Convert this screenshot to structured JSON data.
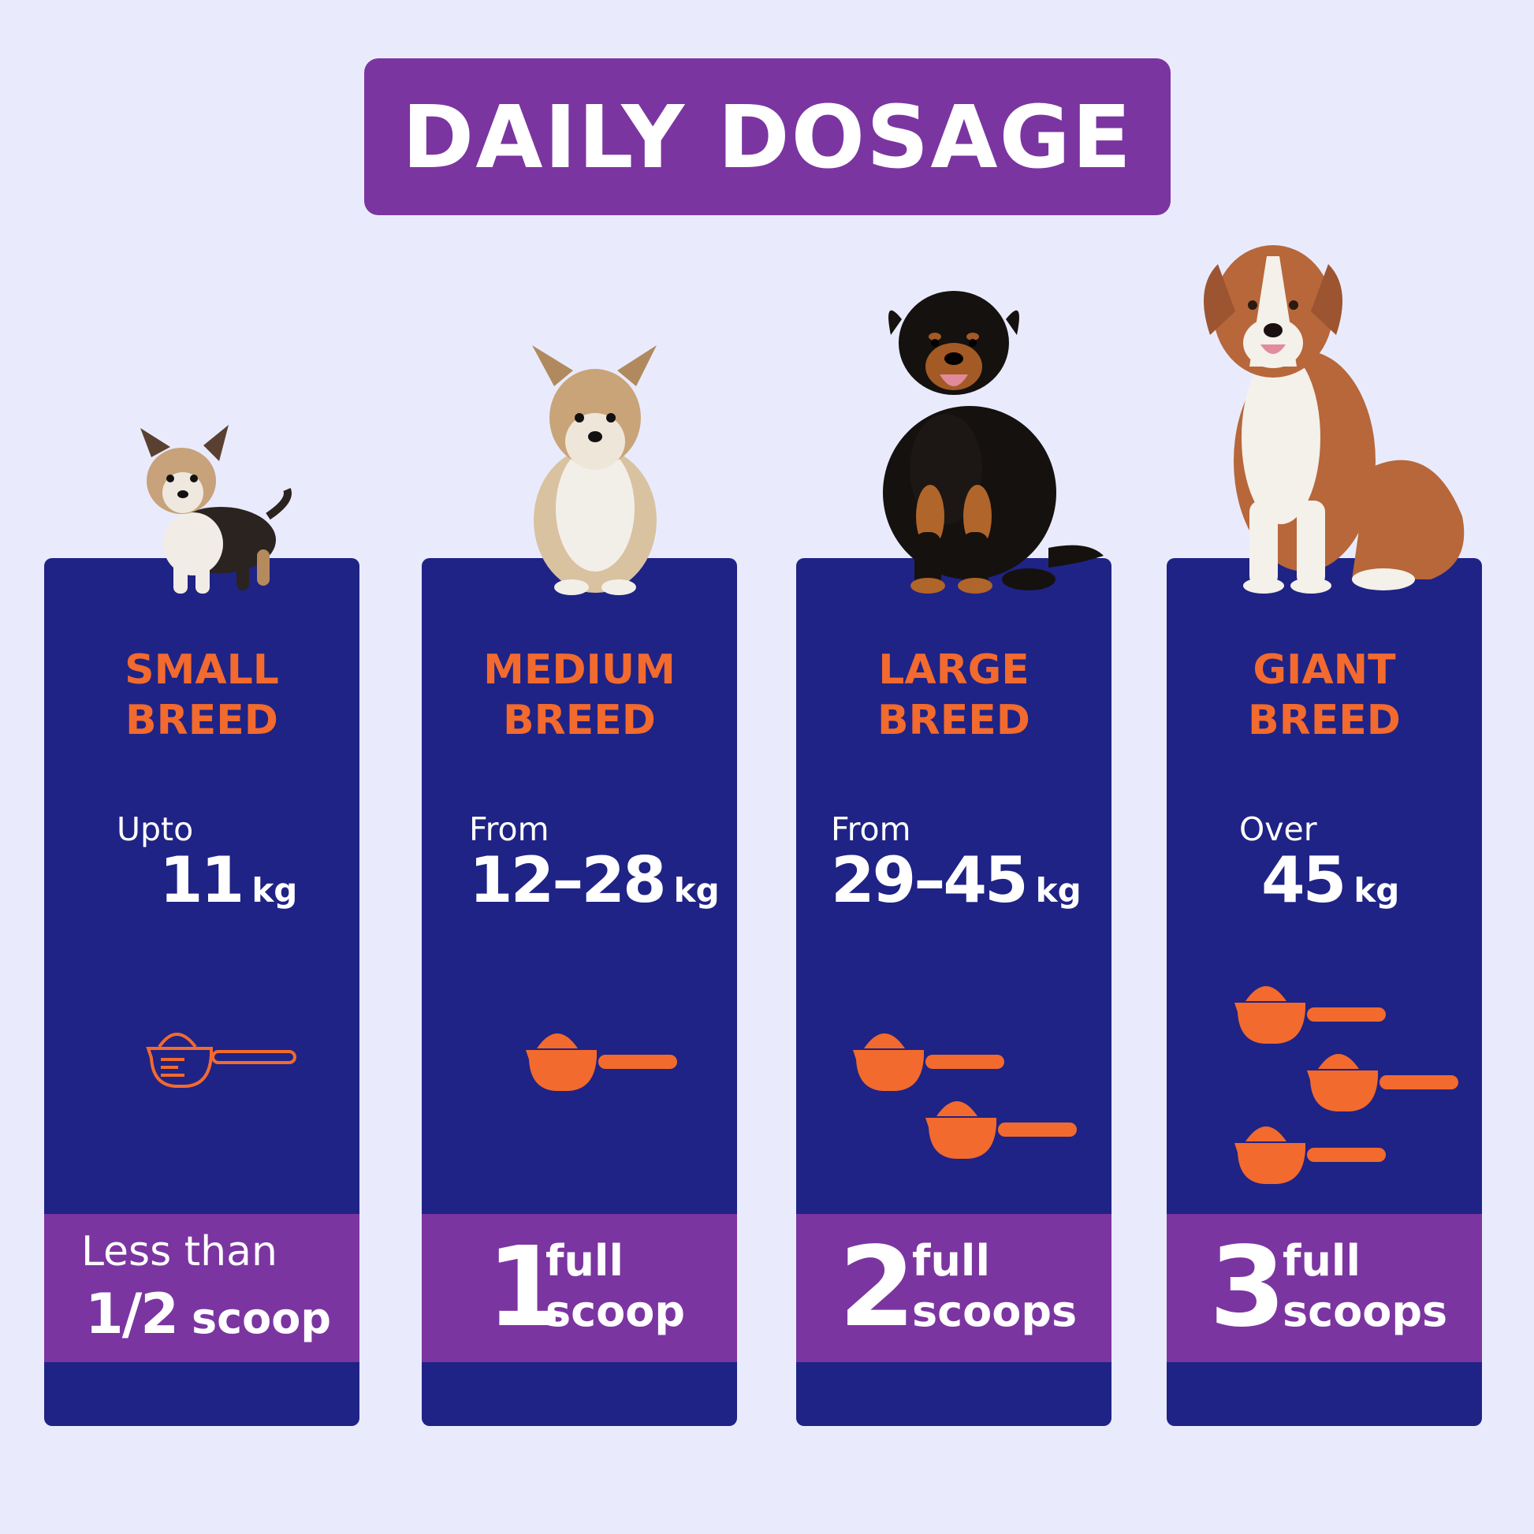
{
  "title": "DAILY DOSAGE",
  "colors": {
    "background": "#e9ebfd",
    "purple": "#7b35a0",
    "navy": "#1f2385",
    "orange": "#f26a2e",
    "white": "#ffffff"
  },
  "icons": {
    "dog_small": "small-dog-icon",
    "dog_medium": "medium-dog-icon",
    "dog_large": "large-dog-icon",
    "dog_giant": "giant-dog-icon",
    "scoop_outline": "scoop-outline-icon",
    "scoop_filled": "scoop-icon"
  },
  "cards": [
    {
      "breed_line1": "SMALL",
      "breed_line2": "BREED",
      "weight_prefix": "Upto",
      "weight_value": "11",
      "weight_unit": "kg",
      "dose_line1": "Less than",
      "dose_fraction": "1/2",
      "dose_word": "scoop"
    },
    {
      "breed_line1": "MEDIUM",
      "breed_line2": "BREED",
      "weight_prefix": "From",
      "weight_value": "12–28",
      "weight_unit": "kg",
      "dose_number": "1",
      "dose_line1": "full",
      "dose_line2": "scoop"
    },
    {
      "breed_line1": "LARGE",
      "breed_line2": "BREED",
      "weight_prefix": "From",
      "weight_value": "29–45",
      "weight_unit": "kg",
      "dose_number": "2",
      "dose_line1": "full",
      "dose_line2": "scoops"
    },
    {
      "breed_line1": "GIANT",
      "breed_line2": "BREED",
      "weight_prefix": "Over",
      "weight_value": "45",
      "weight_unit": "kg",
      "dose_number": "3",
      "dose_line1": "full",
      "dose_line2": "scoops"
    }
  ]
}
